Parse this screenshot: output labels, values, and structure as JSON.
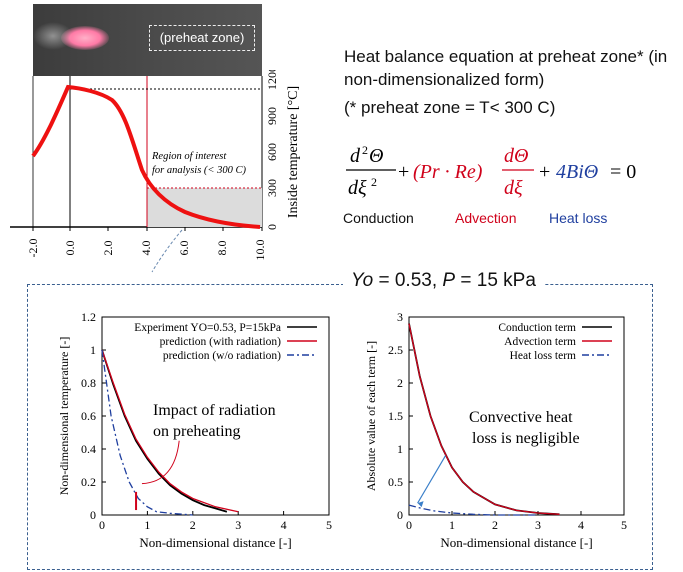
{
  "top_panel": {
    "photo_label": "(preheat zone)",
    "ylabel": "Inside temperature [°C]",
    "yticks": [
      "0",
      "300",
      "600",
      "900",
      "1200"
    ],
    "xticks": [
      "-2.0",
      "0.0",
      "2.0",
      "4.0",
      "6.0",
      "8.0",
      "10.0"
    ],
    "annotation_line1": "Region of interest",
    "annotation_line2": "for analysis (< 300 C)"
  },
  "equation": {
    "title": "Heat balance equation at preheat zone* (in non-dimensionalized form)",
    "note": "(* preheat zone = T< 300 C)",
    "term_labels": [
      {
        "label": "Conduction",
        "color": "#111111"
      },
      {
        "label": "Advection",
        "color": "#d0021b"
      },
      {
        "label": "Heat loss",
        "color": "#1f3f9f"
      }
    ]
  },
  "banner": {
    "yo_label": "Yo",
    "yo_value": " = 0.53, ",
    "p_label": "P",
    "p_value": " = 15 kPa"
  },
  "chart_data": [
    {
      "type": "line",
      "title": "",
      "xlabel": "Non-dimensional distance [-]",
      "ylabel": "Non-dimensional temperature [-]",
      "xlim": [
        0,
        5
      ],
      "ylim": [
        0,
        1.2
      ],
      "xticks": [
        "0",
        "1",
        "2",
        "3",
        "4",
        "5"
      ],
      "yticks": [
        "0",
        "0.2",
        "0.4",
        "0.6",
        "0.8",
        "1",
        "1.2"
      ],
      "legend_position": "top-right",
      "series": [
        {
          "name": "Experiment YO=0.53, P=15kPa",
          "color": "#000000",
          "style": "solid",
          "x": [
            0,
            0.25,
            0.5,
            0.75,
            1.0,
            1.25,
            1.5,
            1.75,
            2.0,
            2.25,
            2.5,
            2.75
          ],
          "y": [
            1.0,
            0.79,
            0.6,
            0.45,
            0.34,
            0.25,
            0.18,
            0.13,
            0.09,
            0.06,
            0.04,
            0.02
          ]
        },
        {
          "name": "prediction (with radiation)",
          "color": "#d0021b",
          "style": "solid",
          "x": [
            0,
            0.25,
            0.5,
            0.75,
            1.0,
            1.25,
            1.5,
            1.75,
            2.0,
            2.5,
            3.0
          ],
          "y": [
            1.0,
            0.8,
            0.61,
            0.46,
            0.35,
            0.26,
            0.19,
            0.14,
            0.1,
            0.05,
            0.02
          ]
        },
        {
          "name": "prediction (w/o radiation)",
          "color": "#1f3f9f",
          "style": "dashdot",
          "x": [
            0,
            0.2,
            0.4,
            0.6,
            0.8,
            1.0,
            1.2,
            1.5,
            2.0
          ],
          "y": [
            1.0,
            0.6,
            0.36,
            0.2,
            0.1,
            0.05,
            0.02,
            0.01,
            0.0
          ]
        }
      ],
      "annotations": [
        "Impact of radiation",
        "on preheating"
      ]
    },
    {
      "type": "line",
      "title": "",
      "xlabel": "Non-dimensional distance [-]",
      "ylabel": "Absolute value of each term [-]",
      "xlim": [
        0,
        5
      ],
      "ylim": [
        0,
        3
      ],
      "xticks": [
        "0",
        "1",
        "2",
        "3",
        "4",
        "5"
      ],
      "yticks": [
        "0",
        "0.5",
        "1",
        "1.5",
        "2",
        "2.5",
        "3"
      ],
      "legend_position": "top-right",
      "series": [
        {
          "name": "Conduction term",
          "color": "#000000",
          "style": "solid",
          "x": [
            0,
            0.25,
            0.5,
            0.75,
            1.0,
            1.25,
            1.5,
            2.0,
            2.5,
            3.0,
            3.5
          ],
          "y": [
            2.9,
            2.1,
            1.5,
            1.05,
            0.72,
            0.5,
            0.35,
            0.16,
            0.07,
            0.03,
            0.01
          ]
        },
        {
          "name": "Advection term",
          "color": "#d0021b",
          "style": "solid",
          "x": [
            0,
            0.25,
            0.5,
            0.75,
            1.0,
            1.25,
            1.5,
            2.0,
            2.5,
            3.0,
            3.5
          ],
          "y": [
            2.9,
            2.1,
            1.5,
            1.05,
            0.72,
            0.5,
            0.35,
            0.16,
            0.07,
            0.03,
            0.01
          ]
        },
        {
          "name": "Heat loss term",
          "color": "#1f3f9f",
          "style": "dashdot",
          "x": [
            0,
            0.3,
            0.6,
            1.0,
            1.5,
            2.0,
            3.0
          ],
          "y": [
            0.15,
            0.1,
            0.06,
            0.03,
            0.01,
            0.0,
            0.0
          ]
        }
      ],
      "annotations": [
        "Convective heat",
        "loss is negligible"
      ]
    }
  ]
}
